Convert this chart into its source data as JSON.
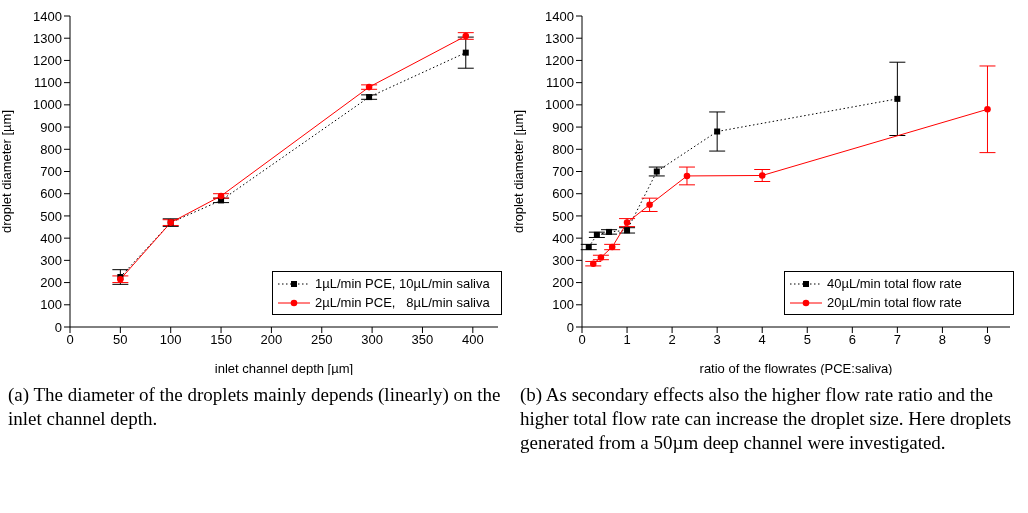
{
  "chart_data": [
    {
      "type": "line",
      "xlabel": "inlet channel depth [µm]",
      "ylabel": "droplet diameter [µm]",
      "xlim": [
        0,
        425
      ],
      "xticks": [
        0,
        50,
        100,
        150,
        200,
        250,
        300,
        350,
        400
      ],
      "ylim": [
        0,
        1400
      ],
      "yticks": [
        0,
        100,
        200,
        300,
        400,
        500,
        600,
        700,
        800,
        900,
        1000,
        1100,
        1200,
        1300,
        1400
      ],
      "legend": "bottom right",
      "annotations": [
        "(a) The diameter of the droplets mainly depends (linearly) on the inlet channel depth."
      ],
      "x": [
        50,
        100,
        150,
        297,
        393
      ],
      "series": [
        {
          "name": "1µL/min PCE, 10µL/min saliva",
          "color": "#000000",
          "marker": "square",
          "line_style": "dotted",
          "values": [
            225,
            470,
            570,
            1035,
            1235
          ],
          "errors": [
            33,
            17,
            10,
            10,
            70
          ]
        },
        {
          "name": "2µL/min PCE,   8µL/min saliva",
          "color": "#ff0000",
          "marker": "circle",
          "line_style": "solid",
          "values": [
            215,
            470,
            590,
            1080,
            1310
          ],
          "errors": [
            15,
            13,
            10,
            10,
            15
          ]
        }
      ]
    },
    {
      "type": "line",
      "xlabel": "ratio of the flowrates (PCE:saliva)",
      "ylabel": "droplet diameter [µm]",
      "xlim": [
        0,
        9.5
      ],
      "xticks": [
        0,
        1,
        2,
        3,
        4,
        5,
        6,
        7,
        8,
        9
      ],
      "ylim": [
        0,
        1400
      ],
      "yticks": [
        0,
        100,
        200,
        300,
        400,
        500,
        600,
        700,
        800,
        900,
        1000,
        1100,
        1200,
        1300,
        1400
      ],
      "legend": "bottom right",
      "annotations": [
        "(b) As secondary effects also the higher flow rate ratio and the higher total flow rate can increase the droplet size. Here droplets generated from a 50µm deep channel were investigated."
      ],
      "series": [
        {
          "name": "40µL/min total flow rate",
          "color": "#000000",
          "marker": "square",
          "line_style": "dotted",
          "x": [
            0.15,
            0.33,
            0.6,
            1,
            1.66,
            3,
            7
          ],
          "values": [
            360,
            415,
            428,
            435,
            700,
            880,
            1027
          ],
          "errors": [
            12,
            12,
            10,
            12,
            20,
            88,
            165
          ]
        },
        {
          "name": "20µL/min total flow rate",
          "color": "#ff0000",
          "marker": "circle",
          "line_style": "solid",
          "x": [
            0.25,
            0.42,
            0.67,
            1,
            1.5,
            2.33,
            4,
            9
          ],
          "values": [
            285,
            313,
            360,
            470,
            550,
            680,
            682,
            980
          ],
          "errors": [
            10,
            10,
            12,
            18,
            30,
            40,
            27,
            195
          ]
        }
      ]
    }
  ]
}
